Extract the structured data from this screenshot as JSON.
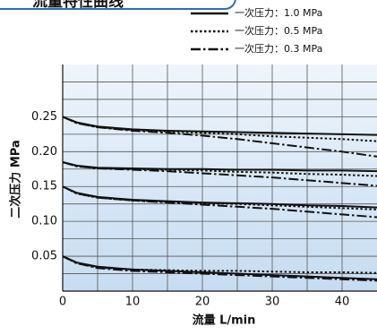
{
  "chart_data": {
    "type": "line",
    "title": "流量特性曲线",
    "x_label": "流量 L/min",
    "y_label": "二次压力 MPa",
    "xlim": [
      0,
      45
    ],
    "ylim": [
      0,
      0.325
    ],
    "xticks": [
      0,
      10,
      20,
      30,
      40
    ],
    "yticks": [
      0.05,
      {
        "value": 0.1,
        "label": "0.10"
      },
      0.15,
      {
        "value": 0.2,
        "label": "0.20"
      },
      0.25
    ],
    "x_minor_grid": [
      5,
      15,
      25,
      35
    ],
    "y_minor_grid": [
      0.025,
      0.075,
      0.125,
      0.175,
      0.225,
      0.275,
      0.3
    ],
    "grid": true,
    "x": [
      0,
      2,
      5,
      10,
      15,
      20,
      25,
      30,
      35,
      40,
      45
    ],
    "series": [
      {
        "name": "一次压力：1.0 MPa",
        "color": "#111111",
        "style": "solid",
        "values": [
          [
            0.25,
            0.242,
            0.236,
            0.232,
            0.23,
            0.229,
            0.228,
            0.227,
            0.226,
            0.225,
            0.224
          ],
          [
            0.185,
            0.18,
            0.177,
            0.176,
            0.175,
            0.175,
            0.174,
            0.174,
            0.173,
            0.173,
            0.172
          ],
          [
            0.15,
            0.141,
            0.135,
            0.131,
            0.129,
            0.127,
            0.126,
            0.125,
            0.123,
            0.122,
            0.12
          ],
          [
            0.05,
            0.041,
            0.035,
            0.031,
            0.029,
            0.027,
            0.025,
            0.023,
            0.021,
            0.019,
            0.017
          ]
        ]
      },
      {
        "name": "一次压力：0.5 MPa",
        "color": "#111111",
        "style": "dotted",
        "values": [
          [
            0.25,
            0.241,
            0.235,
            0.231,
            0.229,
            0.227,
            0.225,
            0.222,
            0.22,
            0.218,
            0.215
          ],
          [
            0.185,
            0.179,
            0.176,
            0.175,
            0.174,
            0.173,
            0.171,
            0.17,
            0.168,
            0.167,
            0.165
          ],
          [
            0.15,
            0.14,
            0.134,
            0.13,
            0.128,
            0.126,
            0.125,
            0.123,
            0.121,
            0.119,
            0.117
          ],
          [
            0.05,
            0.04,
            0.034,
            0.031,
            0.03,
            0.029,
            0.029,
            0.028,
            0.027,
            0.027,
            0.026
          ]
        ]
      },
      {
        "name": "一次压力：0.3 MPa",
        "color": "#111111",
        "style": "dashdot",
        "values": [
          [
            0.25,
            0.241,
            0.235,
            0.23,
            0.227,
            0.223,
            0.218,
            0.212,
            0.206,
            0.2,
            0.193
          ],
          [
            0.185,
            0.179,
            0.176,
            0.174,
            0.172,
            0.169,
            0.166,
            0.163,
            0.159,
            0.155,
            0.151
          ],
          [
            0.15,
            0.14,
            0.134,
            0.13,
            0.127,
            0.124,
            0.121,
            0.118,
            0.114,
            0.11,
            0.106
          ],
          [
            0.05,
            0.04,
            0.033,
            0.029,
            0.027,
            0.025,
            0.023,
            0.021,
            0.019,
            0.017,
            0.015
          ]
        ]
      }
    ]
  }
}
